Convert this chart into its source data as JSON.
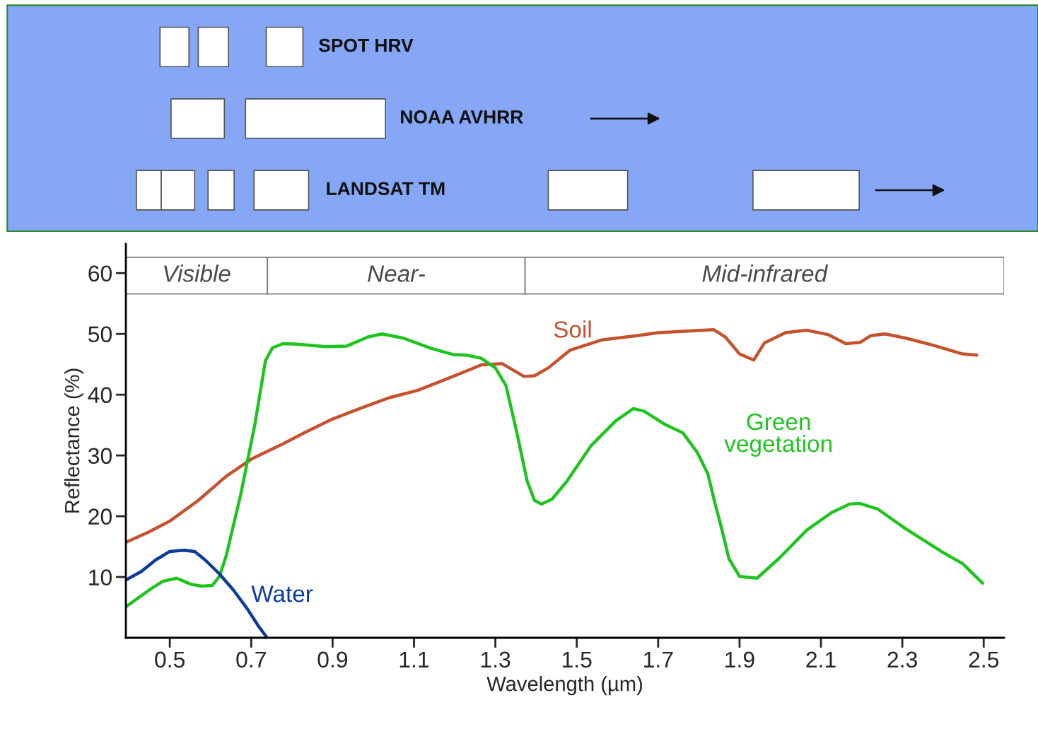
{
  "chart_data": [
    {
      "type": "other",
      "annotations": [
        "SPOT HRV",
        "NOAA AVHRR",
        "LANDSAT TM"
      ]
    },
    {
      "type": "line",
      "xlabel": "Wavelength (µm)",
      "ylabel": "Reflectance (%)",
      "xlim": [
        0.392,
        2.55
      ],
      "ylim": [
        0,
        64.8
      ],
      "xticks": [
        0.5,
        0.7,
        0.9,
        1.1,
        1.3,
        1.5,
        1.7,
        1.9,
        2.1,
        2.3,
        2.5
      ],
      "yticks": [
        10,
        20,
        30,
        40,
        50,
        60
      ],
      "grid": false,
      "legend": false,
      "marker": "none",
      "line_style": "solid",
      "bands": [
        {
          "axis": "x",
          "from": 0.392,
          "to": 0.74,
          "label": "Visible",
          "color": "#ffffff"
        },
        {
          "axis": "x",
          "from": 0.74,
          "to": 1.373,
          "label": "Near-",
          "color": "#ffffff"
        },
        {
          "axis": "x",
          "from": 1.373,
          "to": 2.55,
          "label": "Mid-infrared",
          "color": "#ffffff"
        }
      ],
      "series": [
        {
          "name": "Soil",
          "color": "#c4522e",
          "x": [
            0.392,
            0.448,
            0.5,
            0.57,
            0.639,
            0.703,
            0.778,
            0.83,
            0.9,
            0.97,
            1.039,
            1.109,
            1.196,
            1.266,
            1.317,
            1.37,
            1.396,
            1.43,
            1.483,
            1.561,
            1.648,
            1.7,
            1.836,
            1.865,
            1.9,
            1.935,
            1.961,
            2.013,
            2.065,
            2.117,
            2.161,
            2.196,
            2.222,
            2.257,
            2.309,
            2.378,
            2.448,
            2.483
          ],
          "values": [
            15.7,
            17.4,
            19.2,
            22.6,
            26.6,
            29.5,
            31.9,
            33.7,
            36.0,
            37.8,
            39.5,
            40.7,
            43.0,
            44.9,
            45.1,
            43.0,
            43.1,
            44.4,
            47.3,
            49.0,
            49.7,
            50.2,
            50.7,
            49.5,
            46.7,
            45.7,
            48.5,
            50.2,
            50.6,
            49.9,
            48.4,
            48.6,
            49.7,
            50.0,
            49.3,
            48.1,
            46.7,
            46.5
          ]
        },
        {
          "name": "Green\nvegetation",
          "color": "#1ec41e",
          "x": [
            0.392,
            0.448,
            0.483,
            0.517,
            0.552,
            0.578,
            0.604,
            0.622,
            0.639,
            0.674,
            0.709,
            0.735,
            0.752,
            0.778,
            0.813,
            0.883,
            0.935,
            0.987,
            1.022,
            1.074,
            1.143,
            1.196,
            1.23,
            1.265,
            1.3,
            1.326,
            1.352,
            1.378,
            1.396,
            1.413,
            1.439,
            1.474,
            1.535,
            1.596,
            1.639,
            1.665,
            1.717,
            1.761,
            1.796,
            1.822,
            1.839,
            1.857,
            1.874,
            1.9,
            1.943,
            1.996,
            2.065,
            2.126,
            2.17,
            2.196,
            2.239,
            2.309,
            2.396,
            2.448,
            2.497
          ],
          "values": [
            5.1,
            7.8,
            9.3,
            9.8,
            8.8,
            8.5,
            8.6,
            10.1,
            13.6,
            23.5,
            35.1,
            45.6,
            47.7,
            48.4,
            48.3,
            47.9,
            48.0,
            49.5,
            50.0,
            49.3,
            47.6,
            46.6,
            46.5,
            46.0,
            44.4,
            41.5,
            34.0,
            25.8,
            22.6,
            22.0,
            22.8,
            25.6,
            31.6,
            35.7,
            37.7,
            37.3,
            35.1,
            33.7,
            30.5,
            27.0,
            22.3,
            17.7,
            13.0,
            10.1,
            9.8,
            13.0,
            17.7,
            20.6,
            22.0,
            22.1,
            21.2,
            17.9,
            14.2,
            12.2,
            9.0
          ]
        },
        {
          "name": "Water",
          "color": "#0a3c9c",
          "x": [
            0.392,
            0.43,
            0.465,
            0.5,
            0.535,
            0.561,
            0.587,
            0.622,
            0.657,
            0.691,
            0.717,
            0.737
          ],
          "values": [
            9.5,
            10.9,
            12.8,
            14.2,
            14.4,
            14.2,
            12.8,
            10.5,
            7.8,
            4.7,
            2.0,
            0.2
          ]
        }
      ]
    }
  ]
}
